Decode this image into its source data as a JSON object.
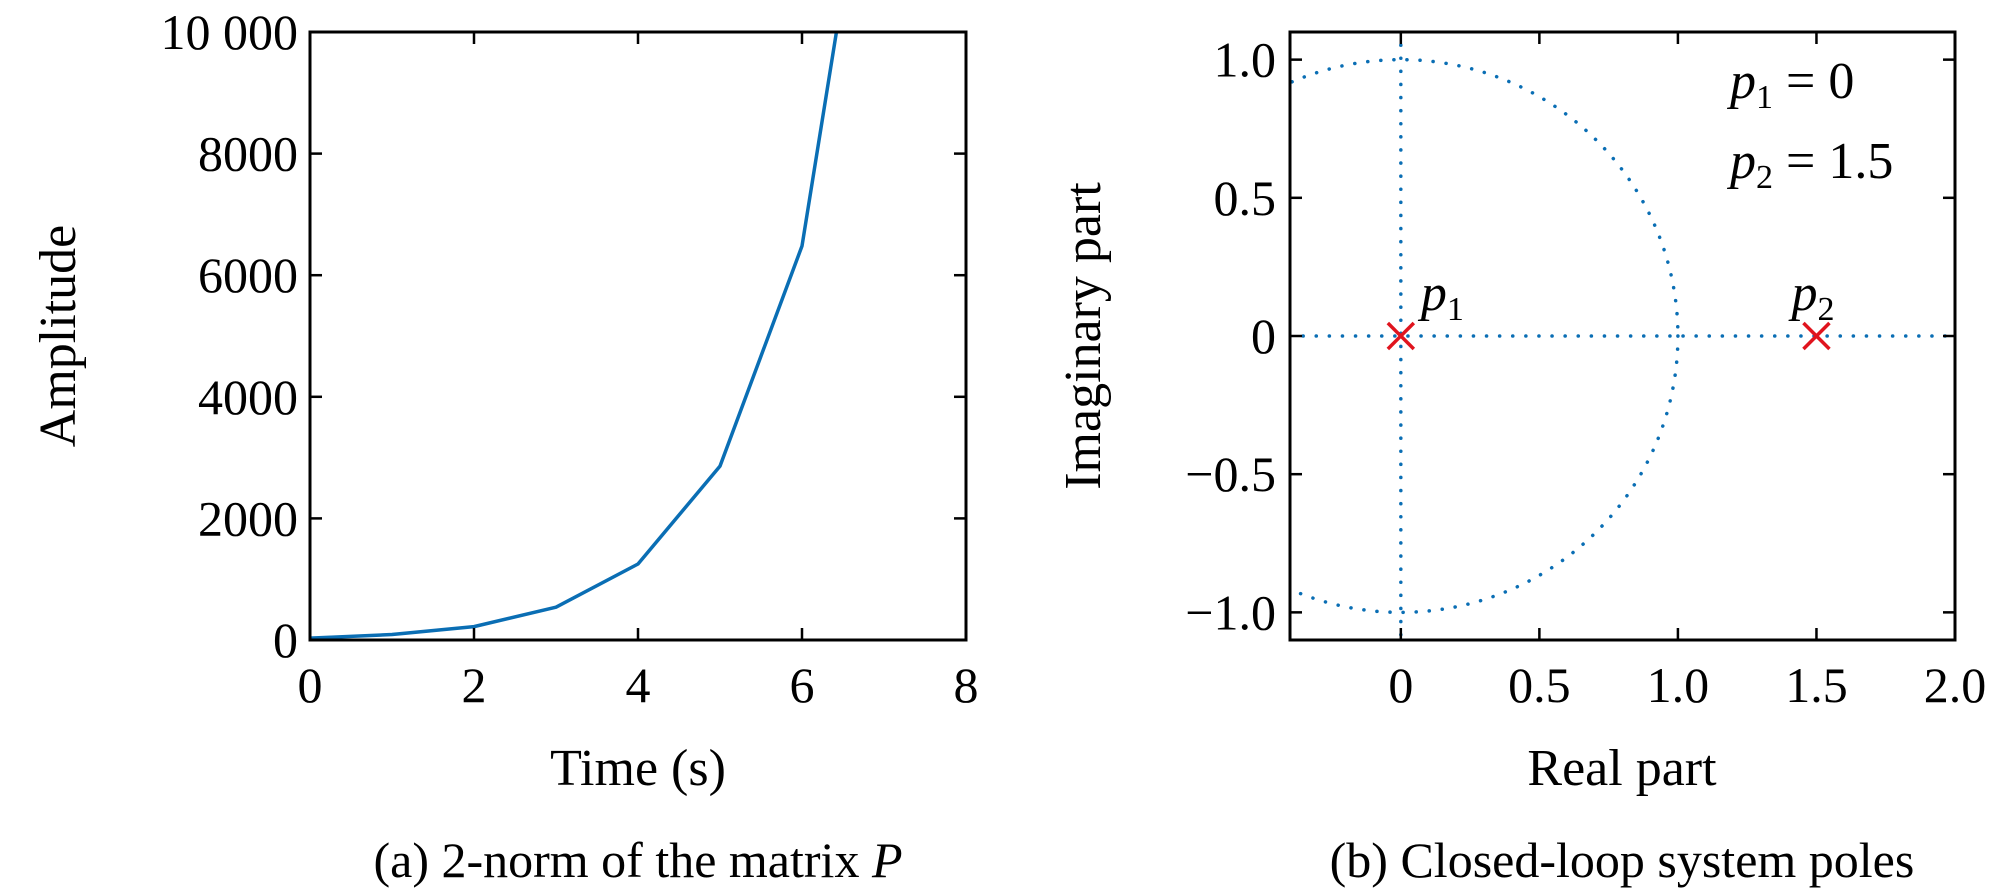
{
  "chart_data": [
    {
      "type": "line",
      "xlabel": "Time (s)",
      "ylabel": "Amplitude",
      "caption_prefix": "(a) 2-norm of the matrix",
      "caption_symbol": "P",
      "xlim": [
        0,
        8
      ],
      "ylim": [
        0,
        10000
      ],
      "xticks": [
        0,
        2,
        4,
        6,
        8
      ],
      "xtick_labels": [
        "0",
        "2",
        "4",
        "6",
        "8"
      ],
      "yticks": [
        0,
        2000,
        4000,
        6000,
        8000,
        10000
      ],
      "ytick_labels": [
        "0",
        "2000",
        "4000",
        "6000",
        "8000",
        "10 000"
      ],
      "grid": false,
      "series": [
        {
          "x": [
            0,
            1,
            2,
            3,
            4,
            5,
            6,
            6.42
          ],
          "y": [
            30,
            90,
            220,
            540,
            1250,
            2860,
            6480,
            10000
          ],
          "color": "#0a6eb4"
        }
      ]
    },
    {
      "type": "scatter",
      "xlabel": "Real part",
      "ylabel": "Imaginary part",
      "caption": "(b) Closed-loop system poles",
      "xlim": [
        -0.4,
        2.0
      ],
      "ylim": [
        -1.1,
        1.1
      ],
      "xticks": [
        0,
        0.5,
        1.0,
        1.5,
        2.0
      ],
      "xtick_labels": [
        "0",
        "0.5",
        "1.0",
        "1.5",
        "2.0"
      ],
      "yticks": [
        -1.0,
        -0.5,
        0,
        0.5,
        1.0
      ],
      "ytick_labels": [
        "−1.0",
        "−0.5",
        "0",
        "0.5",
        "1.0"
      ],
      "grid": false,
      "unit_circle": true,
      "points": [
        {
          "label": "p",
          "sub": "1",
          "x": 0,
          "y": 0,
          "color": "#e0141e"
        },
        {
          "label": "p",
          "sub": "2",
          "x": 1.5,
          "y": 0,
          "color": "#e0141e"
        }
      ],
      "annotations": [
        {
          "symbol": "p",
          "sub": "1",
          "text": " = 0"
        },
        {
          "symbol": "p",
          "sub": "2",
          "text": " = 1.5"
        }
      ],
      "dotted_color": "#0a6eb4"
    }
  ]
}
